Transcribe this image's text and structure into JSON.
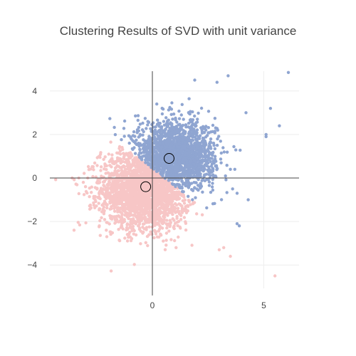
{
  "chart_data": {
    "type": "scatter",
    "title": "Clustering Results of SVD with unit variance",
    "xlabel": "",
    "ylabel": "",
    "xlim": [
      -4.6,
      6.9
    ],
    "ylim": [
      -5.4,
      5.4
    ],
    "xticks": [
      0,
      5
    ],
    "yticks": [
      -4,
      -2,
      0,
      2,
      4
    ],
    "grid": true,
    "zero_lines": true,
    "legend": "none",
    "colors": {
      "cluster_1": "#8fa5d1",
      "cluster_2": "#f7c6c6",
      "centroid_outline": "#000000"
    },
    "clusters": [
      {
        "id": "cluster_1",
        "color": "#8fa5d1",
        "n_dense": 1800,
        "dense_region": {
          "x_center": 1.0,
          "y_center": 1.0,
          "x_spread": 0.9,
          "y_spread": 0.8
        },
        "outliers": [
          [
            6.1,
            4.85
          ],
          [
            3.4,
            4.7
          ],
          [
            2.9,
            4.4
          ],
          [
            1.9,
            4.5
          ],
          [
            4.2,
            3.0
          ],
          [
            5.3,
            3.2
          ],
          [
            5.7,
            2.4
          ],
          [
            5.1,
            2.0
          ],
          [
            5.1,
            1.9
          ],
          [
            3.5,
            0.4
          ],
          [
            3.7,
            0.4
          ],
          [
            3.6,
            -0.5
          ],
          [
            3.8,
            -0.7
          ],
          [
            4.3,
            -1.0
          ],
          [
            3.9,
            -2.2
          ],
          [
            3.8,
            -2.1
          ]
        ],
        "centroid": {
          "x": 0.75,
          "y": 0.9
        }
      },
      {
        "id": "cluster_2",
        "color": "#f7c6c6",
        "n_dense": 2400,
        "dense_region": {
          "x_center": -0.3,
          "y_center": -0.5,
          "x_spread": 1.0,
          "y_spread": 0.9
        },
        "outliers": [
          [
            -3.6,
            0.0
          ],
          [
            -3.3,
            0.0
          ],
          [
            -2.9,
            0.0
          ],
          [
            -3.1,
            -0.2
          ],
          [
            -3.0,
            -0.4
          ],
          [
            5.5,
            -4.5
          ],
          [
            3.5,
            -3.6
          ],
          [
            3.0,
            -3.3
          ],
          [
            3.2,
            -3.2
          ]
        ],
        "centroid": {
          "x": -0.3,
          "y": -0.4
        }
      }
    ]
  }
}
